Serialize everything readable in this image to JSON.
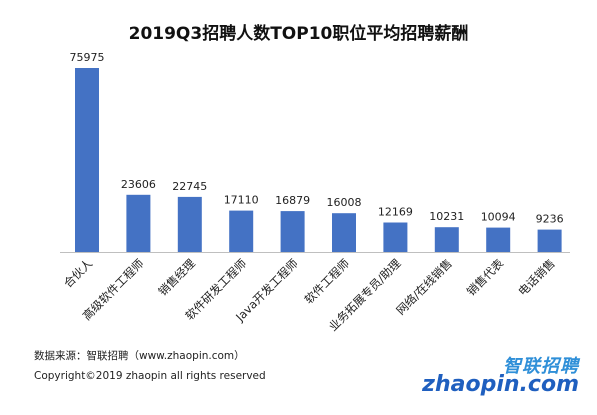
{
  "chart_data": {
    "type": "bar",
    "title": "2019Q3招聘人数TOP10职位平均招聘薪酬",
    "categories": [
      "合伙人",
      "高级软件工程师",
      "销售经理",
      "软件研发工程师",
      "Java开发工程师",
      "软件工程师",
      "业务拓展专员/助理",
      "网络/在线销售",
      "销售代表",
      "电话销售"
    ],
    "values": [
      75975,
      23606,
      22745,
      17110,
      16879,
      16008,
      12169,
      10231,
      10094,
      9236
    ],
    "value_labels": [
      "75975",
      "23606",
      "22745",
      "17110",
      "16879",
      "16008",
      "12169",
      "10231",
      "10094",
      "9236"
    ],
    "ylim": [
      0,
      75975
    ],
    "grid": false,
    "bar_color": "#4472c4"
  },
  "footer": {
    "source": "数据来源：智联招聘（www.zhaopin.com）",
    "copyright": "Copyright©2019 zhaopin all rights reserved"
  },
  "logo": {
    "cn": "智联招聘",
    "word": "zhaopin.com"
  }
}
